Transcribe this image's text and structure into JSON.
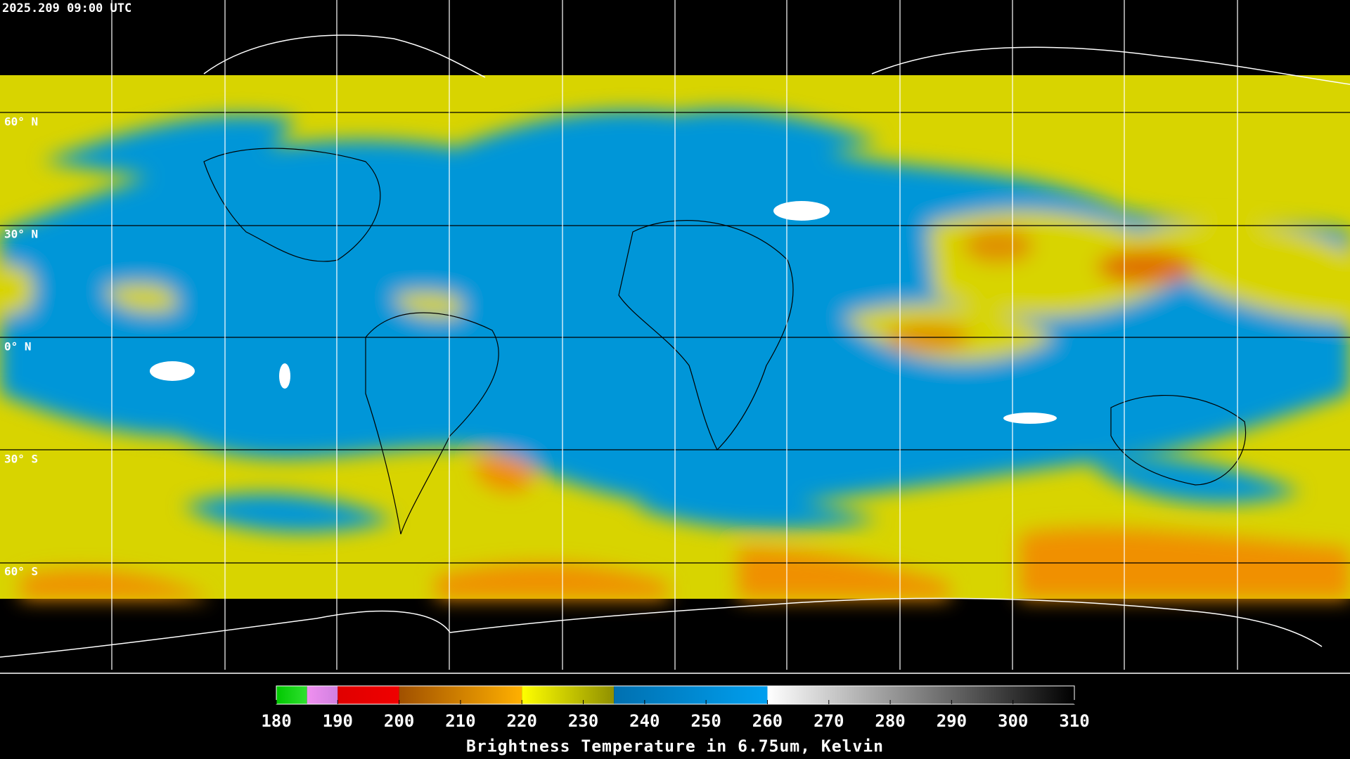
{
  "header": {
    "timestamp": "2025.209 09:00 UTC"
  },
  "map": {
    "latitude_labels": [
      "60° N",
      "30° N",
      "0° N",
      "30° S",
      "60° S"
    ]
  },
  "colorbar": {
    "range": [
      180,
      310
    ],
    "ticks": [
      180,
      190,
      200,
      210,
      220,
      230,
      240,
      250,
      260,
      270,
      280,
      290,
      300,
      310
    ],
    "title": "Brightness Temperature in 6.75um, Kelvin",
    "segments": [
      {
        "from": 180,
        "to": 185,
        "color_start": "#00c800",
        "color_end": "#30e030"
      },
      {
        "from": 185,
        "to": 190,
        "color_start": "#f090f0",
        "color_end": "#d080e0"
      },
      {
        "from": 190,
        "to": 200,
        "color_start": "#e00000",
        "color_end": "#f00000"
      },
      {
        "from": 200,
        "to": 220,
        "color_start": "#a05000",
        "color_end": "#ffb000"
      },
      {
        "from": 220,
        "to": 235,
        "color_start": "#ffff00",
        "color_end": "#909000"
      },
      {
        "from": 235,
        "to": 260,
        "color_start": "#0070b0",
        "color_end": "#00a0f0"
      },
      {
        "from": 260,
        "to": 310,
        "color_start": "#ffffff",
        "color_end": "#000000"
      }
    ]
  }
}
